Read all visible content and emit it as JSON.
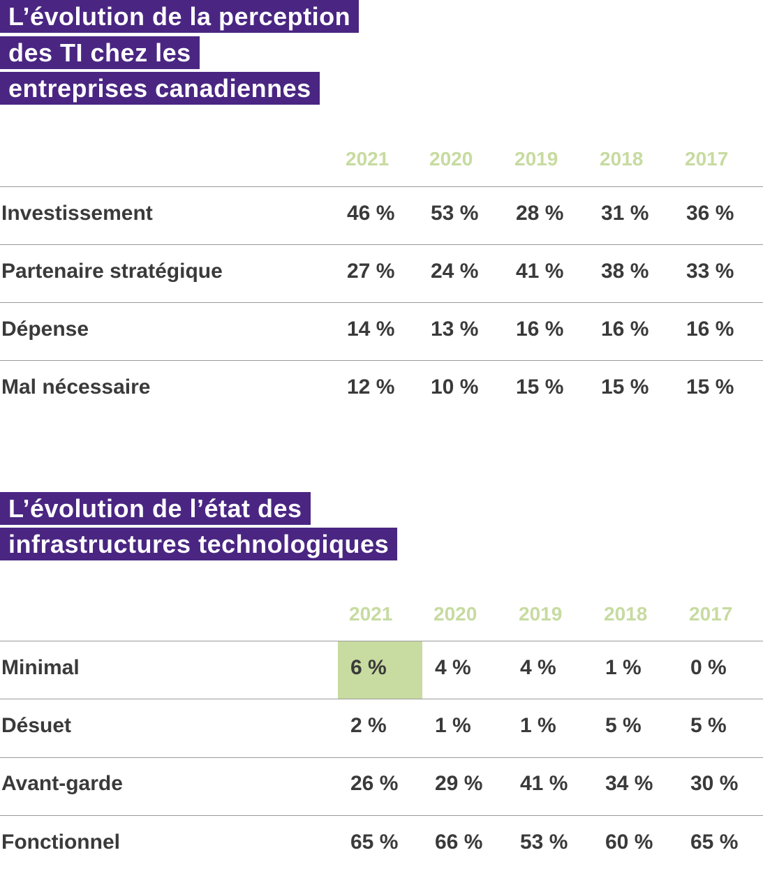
{
  "colors": {
    "title_bg": "#4a2682",
    "year": "#c7dba0",
    "highlight": "#c8dba0",
    "text": "#3a3a3a"
  },
  "table1": {
    "title_lines": [
      "L’évolution de la perception",
      "des TI chez les",
      "entreprises canadiennes"
    ],
    "years": [
      "2021",
      "2020",
      "2019",
      "2018",
      "2017"
    ],
    "rows": [
      {
        "label": "Investissement",
        "values": [
          "46 %",
          "53 %",
          "28 %",
          "31 %",
          "36 %"
        ]
      },
      {
        "label": "Partenaire stratégique",
        "values": [
          "27 %",
          "24 %",
          "41 %",
          "38 %",
          "33 %"
        ]
      },
      {
        "label": "Dépense",
        "values": [
          "14 %",
          "13 %",
          "16 %",
          "16 %",
          "16 %"
        ]
      },
      {
        "label": "Mal nécessaire",
        "values": [
          "12 %",
          "10 %",
          "15 %",
          "15 %",
          "15 %"
        ]
      }
    ]
  },
  "table2": {
    "title_lines": [
      "L’évolution de l’état des",
      "infrastructures technologiques"
    ],
    "years": [
      "2021",
      "2020",
      "2019",
      "2018",
      "2017"
    ],
    "highlighted_cell": {
      "row": "Minimal",
      "year": "2021"
    },
    "rows": [
      {
        "label": "Minimal",
        "values": [
          "6 %",
          "4 %",
          "4 %",
          "1 %",
          "0 %"
        ]
      },
      {
        "label": "Désuet",
        "values": [
          "2 %",
          "1 %",
          "1 %",
          "5 %",
          "5 %"
        ]
      },
      {
        "label": "Avant-garde",
        "values": [
          "26 %",
          "29 %",
          "41 %",
          "34 %",
          "30 %"
        ]
      },
      {
        "label": "Fonctionnel",
        "values": [
          "65 %",
          "66 %",
          "53 %",
          "60 %",
          "65 %"
        ]
      }
    ]
  }
}
